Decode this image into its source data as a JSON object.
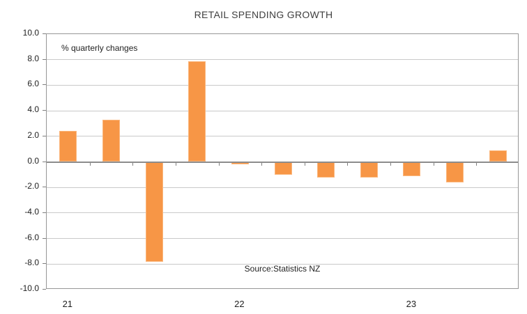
{
  "chart_data": {
    "type": "bar",
    "title": "RETAIL SPENDING GROWTH",
    "annotation": "% quarterly changes",
    "source_note": "Source:Statistics NZ",
    "categories": [
      "2021 Q1",
      "2021 Q2",
      "2021 Q3",
      "2021 Q4",
      "2022 Q1",
      "2022 Q2",
      "2022 Q3",
      "2022 Q4",
      "2023 Q1",
      "2023 Q2",
      "2023 Q3"
    ],
    "values": [
      2.4,
      3.3,
      -7.8,
      7.9,
      -0.2,
      -1.0,
      -1.2,
      -1.2,
      -1.1,
      -1.6,
      0.9
    ],
    "xlabel": "",
    "ylabel": "% quarterly changes",
    "ylim": [
      -10,
      10
    ],
    "y_tick_values": [
      10,
      8,
      6,
      4,
      2,
      0,
      -2,
      -4,
      -6,
      -8,
      -10
    ],
    "y_tick_labels": [
      "10.0",
      "8.0",
      "6.0",
      "4.0",
      "2.0",
      "0.0",
      "-2.0",
      "-4.0",
      "-6.0",
      "-8.0",
      "-10.0"
    ],
    "x_axis_labels": [
      {
        "label": "21",
        "bar_index": 0
      },
      {
        "label": "22",
        "bar_index": 4
      },
      {
        "label": "23",
        "bar_index": 8
      }
    ],
    "grid": true,
    "legend": "none",
    "colors": {
      "bar_fill": "#F79646",
      "bar_border": "#FBB77D",
      "gridline": "#C9C9C9",
      "zero_line": "#8C8C8C",
      "plot_border": "#969696",
      "title_text": "#3F3F3F",
      "axis_text": "#1F1F1F",
      "background": "#FFFFFF"
    }
  }
}
